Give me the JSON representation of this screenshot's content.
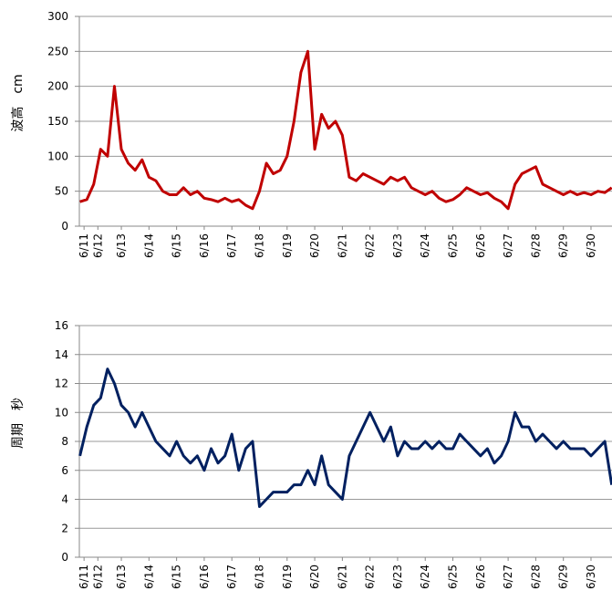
{
  "chart_data": [
    {
      "type": "line",
      "y_label": "波高　cm",
      "x": [
        11.5,
        11.75,
        12,
        12.25,
        12.5,
        12.75,
        13,
        13.25,
        13.5,
        13.75,
        14,
        14.25,
        14.5,
        14.75,
        15,
        15.25,
        15.5,
        15.75,
        16,
        16.25,
        16.5,
        16.75,
        17,
        17.25,
        17.5,
        17.75,
        18,
        18.25,
        18.5,
        18.75,
        19,
        19.25,
        19.5,
        19.75,
        20,
        20.25,
        20.5,
        20.75,
        21,
        21.25,
        21.5,
        21.75,
        22,
        22.25,
        22.5,
        22.75,
        23,
        23.25,
        23.5,
        23.75,
        24,
        24.25,
        24.5,
        24.75,
        25,
        25.25,
        25.5,
        25.75,
        26,
        26.25,
        26.5,
        26.75,
        27,
        27.25,
        27.5,
        27.75,
        28,
        28.25,
        28.5,
        28.75,
        29,
        29.25,
        29.5,
        29.75,
        30,
        30.25,
        30.5,
        30.75
      ],
      "series": [
        {
          "color": "#c00000",
          "values": [
            35,
            38,
            60,
            110,
            100,
            200,
            110,
            90,
            80,
            95,
            70,
            65,
            50,
            45,
            45,
            55,
            45,
            50,
            40,
            38,
            35,
            40,
            35,
            38,
            30,
            25,
            50,
            90,
            75,
            80,
            100,
            150,
            220,
            250,
            110,
            160,
            140,
            150,
            130,
            70,
            65,
            75,
            70,
            65,
            60,
            70,
            65,
            70,
            55,
            50,
            45,
            50,
            40,
            35,
            38,
            45,
            55,
            50,
            45,
            48,
            40,
            35,
            25,
            60,
            75,
            80,
            85,
            60,
            55,
            50,
            45,
            50,
            45,
            48,
            45,
            50,
            48,
            55
          ]
        }
      ],
      "xlim": [
        11.48,
        30.76
      ],
      "xticks": [
        {
          "value": 11.65,
          "label": "6/11"
        },
        {
          "value": 12.15,
          "label": "6/12"
        },
        {
          "value": 13,
          "label": "6/13"
        },
        {
          "value": 14,
          "label": "6/14"
        },
        {
          "value": 15,
          "label": "6/15"
        },
        {
          "value": 16,
          "label": "6/16"
        },
        {
          "value": 17,
          "label": "6/17"
        },
        {
          "value": 18,
          "label": "6/18"
        },
        {
          "value": 19,
          "label": "6/19"
        },
        {
          "value": 20,
          "label": "6/20"
        },
        {
          "value": 21,
          "label": "6/21"
        },
        {
          "value": 22,
          "label": "6/22"
        },
        {
          "value": 23,
          "label": "6/23"
        },
        {
          "value": 24,
          "label": "6/24"
        },
        {
          "value": 25,
          "label": "6/25"
        },
        {
          "value": 26,
          "label": "6/26"
        },
        {
          "value": 27,
          "label": "6/27"
        },
        {
          "value": 28,
          "label": "6/28"
        },
        {
          "value": 29,
          "label": "6/29"
        },
        {
          "value": 30,
          "label": "6/30"
        }
      ],
      "ylim": [
        0,
        300
      ],
      "yticks": [
        0,
        50,
        100,
        150,
        200,
        250,
        300
      ],
      "grid": true
    },
    {
      "type": "line",
      "y_label": "周期　秒",
      "x": [
        11.5,
        11.75,
        12,
        12.25,
        12.5,
        12.75,
        13,
        13.25,
        13.5,
        13.75,
        14,
        14.25,
        14.5,
        14.75,
        15,
        15.25,
        15.5,
        15.75,
        16,
        16.25,
        16.5,
        16.75,
        17,
        17.25,
        17.5,
        17.75,
        18,
        18.25,
        18.5,
        18.75,
        19,
        19.25,
        19.5,
        19.75,
        20,
        20.25,
        20.5,
        20.75,
        21,
        21.25,
        21.5,
        21.75,
        22,
        22.25,
        22.5,
        22.75,
        23,
        23.25,
        23.5,
        23.75,
        24,
        24.25,
        24.5,
        24.75,
        25,
        25.25,
        25.5,
        25.75,
        26,
        26.25,
        26.5,
        26.75,
        27,
        27.25,
        27.5,
        27.75,
        28,
        28.25,
        28.5,
        28.75,
        29,
        29.25,
        29.5,
        29.75,
        30,
        30.25,
        30.5,
        30.75
      ],
      "series": [
        {
          "color": "#002060",
          "values": [
            7,
            9,
            10.5,
            11,
            13,
            12,
            10.5,
            10,
            9,
            10,
            9,
            8,
            7.5,
            7,
            8,
            7,
            6.5,
            7,
            6,
            7.5,
            6.5,
            7,
            8.5,
            6,
            7.5,
            8,
            3.5,
            4,
            4.5,
            4.5,
            4.5,
            5,
            5,
            6,
            5,
            7,
            5,
            4.5,
            4,
            7,
            8,
            9,
            10,
            9,
            8,
            9,
            7,
            8,
            7.5,
            7.5,
            8,
            7.5,
            8,
            7.5,
            7.5,
            8.5,
            8,
            7.5,
            7,
            7.5,
            6.5,
            7,
            8,
            10,
            9,
            9,
            8,
            8.5,
            8,
            7.5,
            8,
            7.5,
            7.5,
            7.5,
            7,
            7.5,
            8,
            5
          ]
        }
      ],
      "xlim": [
        11.48,
        30.76
      ],
      "xticks": [
        {
          "value": 11.65,
          "label": "6/11"
        },
        {
          "value": 12.15,
          "label": "6/12"
        },
        {
          "value": 13,
          "label": "6/13"
        },
        {
          "value": 14,
          "label": "6/14"
        },
        {
          "value": 15,
          "label": "6/15"
        },
        {
          "value": 16,
          "label": "6/16"
        },
        {
          "value": 17,
          "label": "6/17"
        },
        {
          "value": 18,
          "label": "6/18"
        },
        {
          "value": 19,
          "label": "6/19"
        },
        {
          "value": 20,
          "label": "6/20"
        },
        {
          "value": 21,
          "label": "6/21"
        },
        {
          "value": 22,
          "label": "6/22"
        },
        {
          "value": 23,
          "label": "6/23"
        },
        {
          "value": 24,
          "label": "6/24"
        },
        {
          "value": 25,
          "label": "6/25"
        },
        {
          "value": 26,
          "label": "6/26"
        },
        {
          "value": 27,
          "label": "6/27"
        },
        {
          "value": 28,
          "label": "6/28"
        },
        {
          "value": 29,
          "label": "6/29"
        },
        {
          "value": 30,
          "label": "6/30"
        }
      ],
      "ylim": [
        0,
        16
      ],
      "yticks": [
        0,
        2,
        4,
        6,
        8,
        10,
        12,
        14,
        16
      ],
      "grid": true
    }
  ]
}
